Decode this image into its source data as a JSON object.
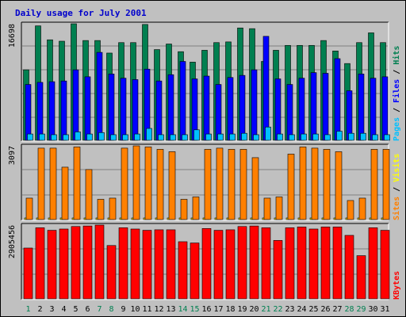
{
  "title": "Daily usage for July 2001",
  "colors": {
    "hits": "#007f50",
    "files": "#0000ff",
    "pages": "#00c0ff",
    "visits": "#ffff00",
    "sites": "#ff8000",
    "kbytes": "#ff0000",
    "weekday_label": "#000000",
    "weekend_label": "#007f50"
  },
  "chart_data": [
    {
      "type": "bar",
      "panel": "top",
      "max_label": "16698",
      "legend": [
        "Pages",
        "Files",
        "Hits"
      ],
      "legend_placement": "right",
      "categories": [
        "1",
        "2",
        "3",
        "4",
        "5",
        "6",
        "7",
        "8",
        "9",
        "10",
        "11",
        "12",
        "13",
        "14",
        "15",
        "16",
        "17",
        "18",
        "19",
        "20",
        "21",
        "22",
        "23",
        "24",
        "25",
        "26",
        "27",
        "28",
        "29",
        "30",
        "31"
      ],
      "weekend_days": [
        "1",
        "7",
        "8",
        "14",
        "15",
        "21",
        "22",
        "28",
        "29"
      ],
      "series": [
        {
          "name": "Hits",
          "values": [
            10100,
            16400,
            14400,
            14200,
            16698,
            14300,
            14300,
            12500,
            14000,
            14000,
            16600,
            13000,
            13800,
            12700,
            11200,
            12900,
            14000,
            14100,
            16100,
            16000,
            11300,
            12900,
            13600,
            13600,
            13600,
            14300,
            12800,
            11000,
            14000,
            15400,
            14000
          ]
        },
        {
          "name": "Files",
          "values": [
            8000,
            8300,
            8400,
            8500,
            10100,
            9100,
            12600,
            9500,
            8900,
            8700,
            10200,
            8500,
            9400,
            11300,
            8800,
            9200,
            8000,
            9000,
            9300,
            10100,
            14900,
            8800,
            8000,
            8900,
            9700,
            9600,
            11700,
            7100,
            9500,
            8900,
            9100
          ]
        },
        {
          "name": "Pages",
          "values": [
            900,
            900,
            800,
            800,
            1200,
            900,
            1100,
            800,
            800,
            900,
            1700,
            800,
            800,
            800,
            1500,
            900,
            900,
            900,
            1000,
            800,
            1900,
            900,
            800,
            900,
            900,
            800,
            1300,
            1000,
            1000,
            800,
            800
          ]
        }
      ]
    },
    {
      "type": "bar",
      "panel": "middle",
      "max_label": "3097",
      "legend": [
        "Sites",
        "Visits"
      ],
      "legend_placement": "right",
      "categories": [
        "1",
        "2",
        "3",
        "4",
        "5",
        "6",
        "7",
        "8",
        "9",
        "10",
        "11",
        "12",
        "13",
        "14",
        "15",
        "16",
        "17",
        "18",
        "19",
        "20",
        "21",
        "22",
        "23",
        "24",
        "25",
        "26",
        "27",
        "28",
        "29",
        "30",
        "31"
      ],
      "series": [
        {
          "name": "Visits",
          "values": [
            0,
            0,
            0,
            0,
            0,
            0,
            0,
            0,
            0,
            0,
            0,
            0,
            0,
            0,
            0,
            0,
            0,
            0,
            0,
            0,
            0,
            0,
            0,
            0,
            0,
            0,
            0,
            0,
            0,
            0,
            0
          ]
        },
        {
          "name": "Sites",
          "values": [
            900,
            3000,
            3000,
            2200,
            3050,
            2100,
            850,
            900,
            3000,
            3097,
            3050,
            2950,
            2850,
            850,
            950,
            2950,
            3000,
            2950,
            2950,
            2600,
            900,
            950,
            2750,
            3050,
            3000,
            2950,
            2850,
            800,
            900,
            2950,
            2950
          ]
        }
      ]
    },
    {
      "type": "bar",
      "panel": "bottom",
      "max_label": "2905456",
      "legend": [
        "KBytes"
      ],
      "legend_placement": "right",
      "categories": [
        "1",
        "2",
        "3",
        "4",
        "5",
        "6",
        "7",
        "8",
        "9",
        "10",
        "11",
        "12",
        "13",
        "14",
        "15",
        "16",
        "17",
        "18",
        "19",
        "20",
        "21",
        "22",
        "23",
        "24",
        "25",
        "26",
        "27",
        "28",
        "29",
        "30",
        "31"
      ],
      "series": [
        {
          "name": "KBytes",
          "values": [
            2000000,
            2800000,
            2700000,
            2750000,
            2850000,
            2870000,
            2905456,
            2100000,
            2800000,
            2750000,
            2700000,
            2720000,
            2720000,
            2250000,
            2200000,
            2770000,
            2700000,
            2720000,
            2850000,
            2870000,
            2800000,
            2300000,
            2800000,
            2830000,
            2750000,
            2830000,
            2830000,
            2500000,
            1700000,
            2800000,
            2700000
          ]
        }
      ]
    }
  ]
}
